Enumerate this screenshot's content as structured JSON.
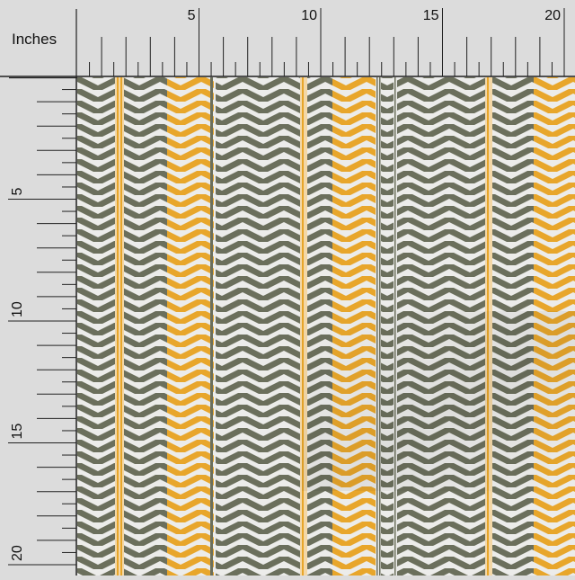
{
  "ruler": {
    "unit_label": "Inches",
    "top_numbers": [
      "5",
      "10",
      "15",
      "20"
    ],
    "left_numbers": [
      "5",
      "10",
      "15",
      "20"
    ]
  },
  "fabric": {
    "pattern": "vertical herringbone chevron stripes",
    "colors": {
      "olive": "#6b6f5c",
      "mustard": "#e8a62b",
      "ground": "#ececea",
      "cream_stripe": "#f3d7a6",
      "ruler_bg": "#dcdcdc"
    }
  }
}
